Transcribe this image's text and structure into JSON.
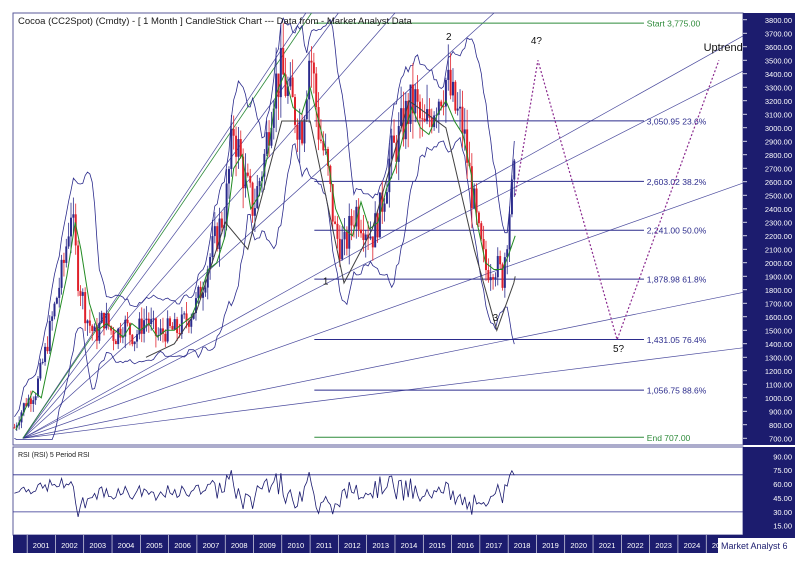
{
  "chart_data": [
    {
      "type": "candlestick",
      "title": "Cocoa (CC2Spot) (Cmdty) - [ 1 Month ] CandleStick Chart --- Data from - Market Analyst Data",
      "ylim": [
        650,
        3850
      ],
      "y_ticks": [
        "3800.00",
        "3700.00",
        "3600.00",
        "3500.00",
        "3400.00",
        "3300.00",
        "3200.00",
        "3100.00",
        "3000.00",
        "2900.00",
        "2800.00",
        "2700.00",
        "2600.00",
        "2500.00",
        "2400.00",
        "2300.00",
        "2200.00",
        "2100.00",
        "2000.00",
        "1900.00",
        "1800.00",
        "1700.00",
        "1600.00",
        "1500.00",
        "1400.00",
        "1300.00",
        "1200.00",
        "1100.00",
        "1000.00",
        "900.00",
        "800.00",
        "700.00"
      ],
      "x_ticks": [
        "2001",
        "2002",
        "2003",
        "2004",
        "2005",
        "2006",
        "2007",
        "2008",
        "2009",
        "2010",
        "2011",
        "2012",
        "2013",
        "2014",
        "2015",
        "2016",
        "2017",
        "2018",
        "2019",
        "2020",
        "2021",
        "2022",
        "2023",
        "2024",
        "2025"
      ],
      "xlim": [
        2000.5,
        2026.3
      ],
      "fib_levels": [
        {
          "label": "Start 3,775.00",
          "value": 3775,
          "color": "#2e8b3a"
        },
        {
          "label": "3,050.95 23.6%",
          "value": 3050.95,
          "color": "#2b2b8c"
        },
        {
          "label": "2,603.02 38.2%",
          "value": 2603.02,
          "color": "#2b2b8c"
        },
        {
          "label": "2,241.00 50.0%",
          "value": 2241,
          "color": "#2b2b8c"
        },
        {
          "label": "1,878.98 61.8%",
          "value": 1878.98,
          "color": "#2b2b8c"
        },
        {
          "label": "1,431.05 76.4%",
          "value": 1431.05,
          "color": "#2b2b8c"
        },
        {
          "label": "1,056.75 88.6%",
          "value": 1056.75,
          "color": "#2b2b8c"
        },
        {
          "label": "End 707.00",
          "value": 707,
          "color": "#2e8b3a"
        }
      ],
      "series": [
        {
          "values": [
            [
              2000.6,
              760
            ],
            [
              2000.9,
              900
            ],
            [
              2001.2,
              1050
            ],
            [
              2001.5,
              1000
            ],
            [
              2001.8,
              1300
            ],
            [
              2002.1,
              1600
            ],
            [
              2002.4,
              1900
            ],
            [
              2002.7,
              2300
            ],
            [
              2002.9,
              2100
            ],
            [
              2003.2,
              1700
            ],
            [
              2003.5,
              1500
            ],
            [
              2003.8,
              1550
            ],
            [
              2004.1,
              1500
            ],
            [
              2004.4,
              1450
            ],
            [
              2004.7,
              1550
            ],
            [
              2005.0,
              1500
            ],
            [
              2005.3,
              1550
            ],
            [
              2005.6,
              1450
            ],
            [
              2005.9,
              1500
            ],
            [
              2006.2,
              1500
            ],
            [
              2006.5,
              1550
            ],
            [
              2006.8,
              1600
            ],
            [
              2007.1,
              1750
            ],
            [
              2007.4,
              1950
            ],
            [
              2007.7,
              2000
            ],
            [
              2008.0,
              2200
            ],
            [
              2008.3,
              2700
            ],
            [
              2008.6,
              2800
            ],
            [
              2008.9,
              2400
            ],
            [
              2009.2,
              2500
            ],
            [
              2009.5,
              2800
            ],
            [
              2009.8,
              3250
            ],
            [
              2010.1,
              3400
            ],
            [
              2010.4,
              3150
            ],
            [
              2010.7,
              3100
            ],
            [
              2011.0,
              3300
            ],
            [
              2011.3,
              3050
            ],
            [
              2011.6,
              2800
            ],
            [
              2011.9,
              2400
            ],
            [
              2012.2,
              2250
            ],
            [
              2012.5,
              2200
            ],
            [
              2012.8,
              2450
            ],
            [
              2013.1,
              2250
            ],
            [
              2013.4,
              2300
            ],
            [
              2013.7,
              2550
            ],
            [
              2014.0,
              2700
            ],
            [
              2014.3,
              2950
            ],
            [
              2014.6,
              3150
            ],
            [
              2014.9,
              3000
            ],
            [
              2015.2,
              2950
            ],
            [
              2015.5,
              3100
            ],
            [
              2015.8,
              3200
            ],
            [
              2016.1,
              3050
            ],
            [
              2016.4,
              2950
            ],
            [
              2016.7,
              2650
            ],
            [
              2016.9,
              2300
            ],
            [
              2017.2,
              2000
            ],
            [
              2017.5,
              1950
            ],
            [
              2017.8,
              1950
            ],
            [
              2018.0,
              2050
            ],
            [
              2018.25,
              2200
            ]
          ],
          "color": "#228b22",
          "style": "solid"
        },
        {
          "values": [
            [
              2005.2,
              1300
            ],
            [
              2006.2,
              1400
            ],
            [
              2007.0,
              1650
            ],
            [
              2008.0,
              2300
            ],
            [
              2008.8,
              2100
            ],
            [
              2010.0,
              3050
            ],
            [
              2011.0,
              3050
            ],
            [
              2012.2,
              1850
            ],
            [
              2013.2,
              2250
            ],
            [
              2014.5,
              3200
            ],
            [
              2015.8,
              3000
            ],
            [
              2016.8,
              2100
            ],
            [
              2017.6,
              1500
            ],
            [
              2018.2,
              1850
            ],
            [
              2018.25,
              1900
            ]
          ],
          "color": "#404040",
          "style": "solid"
        }
      ]
    },
    {
      "type": "line",
      "title": "RSI (RSI) 5 Period RSI",
      "ylim": [
        5,
        100
      ],
      "y_ticks": [
        "90.00",
        "75.00",
        "60.00",
        "45.00",
        "30.00",
        "15.00"
      ],
      "reference_lines": [
        70,
        30
      ],
      "series": [
        {
          "color": "#1a1a6e"
        }
      ]
    }
  ],
  "annotations": [
    {
      "label": "1",
      "x": 2011.55,
      "y": 1840
    },
    {
      "label": "2",
      "x": 2015.9,
      "y": 3650
    },
    {
      "label": "3",
      "x": 2017.55,
      "y": 1570
    },
    {
      "label": "4?",
      "x": 2019.0,
      "y": 3620
    },
    {
      "label": "5?",
      "x": 2021.9,
      "y": 1340
    },
    {
      "label": "Uptrend",
      "x": 2025.6,
      "y": 3570
    }
  ],
  "footer": {
    "badge": "Market Analyst 6"
  },
  "colors": {
    "up": "#2b2b8c",
    "down": "#e0202a",
    "fib": "#2b2b8c",
    "fib_end": "#2e8b3a",
    "gann": "#2b2b8c",
    "projection": "#8b2a8f",
    "price_axis": "#1c1c6e"
  }
}
